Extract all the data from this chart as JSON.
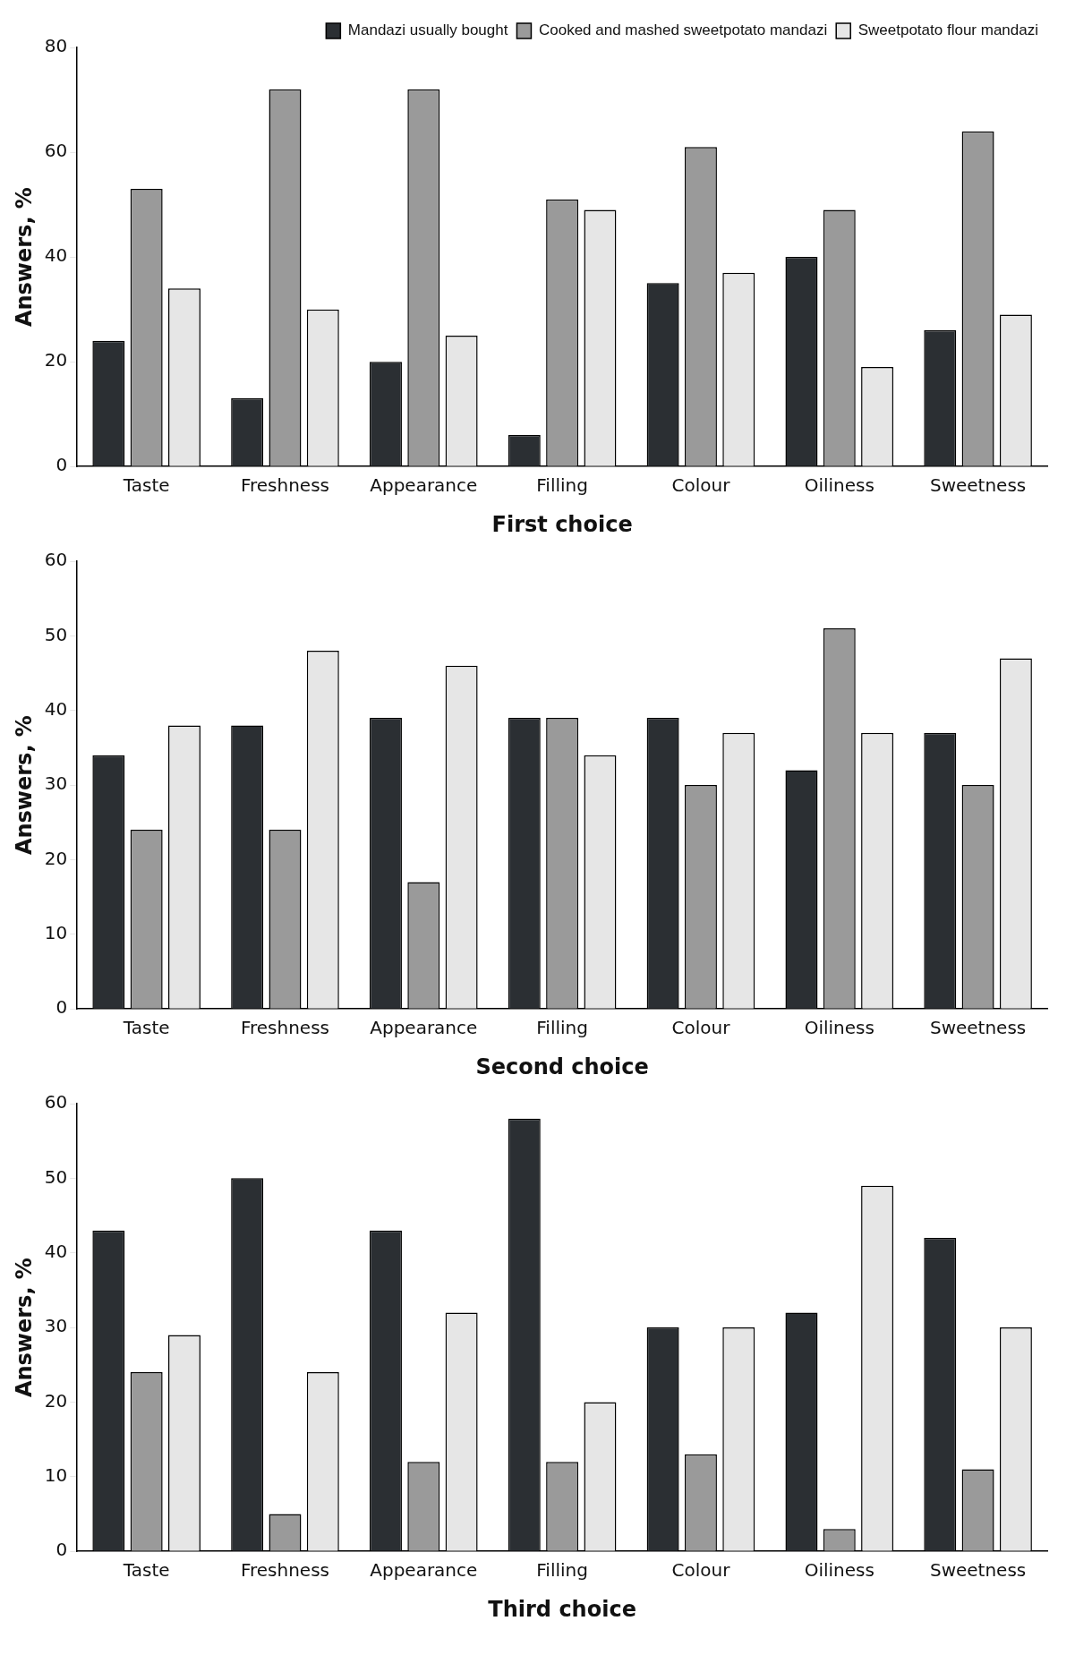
{
  "chart_data": [
    {
      "type": "bar",
      "xlabel": "First choice",
      "ylabel": "Answers, %",
      "categories": [
        "Taste",
        "Freshness",
        "Appearance",
        "Filling",
        "Colour",
        "Oiliness",
        "Sweetness"
      ],
      "ylim": [
        0,
        80
      ],
      "yticks": [
        0,
        20,
        40,
        60,
        80
      ],
      "grid": false,
      "legend": "top right",
      "series": [
        {
          "name": "Mandazi usually bought",
          "color": "#2b2f33",
          "values": [
            24,
            13,
            20,
            6,
            35,
            40,
            26
          ]
        },
        {
          "name": "Cooked and mashed sweetpotato mandazi",
          "color": "#9a9a9a",
          "values": [
            53,
            72,
            72,
            51,
            61,
            49,
            64
          ]
        },
        {
          "name": "Sweetpotato flour mandazi",
          "color": "#e6e6e6",
          "values": [
            34,
            30,
            25,
            49,
            37,
            19,
            29
          ]
        }
      ]
    },
    {
      "type": "bar",
      "xlabel": "Second choice",
      "ylabel": "Answers, %",
      "categories": [
        "Taste",
        "Freshness",
        "Appearance",
        "Filling",
        "Colour",
        "Oiliness",
        "Sweetness"
      ],
      "ylim": [
        0,
        60
      ],
      "yticks": [
        0,
        10,
        20,
        30,
        40,
        50,
        60
      ],
      "grid": false,
      "series": [
        {
          "color": "#2b2f33",
          "values": [
            34,
            38,
            39,
            39,
            39,
            32,
            37
          ]
        },
        {
          "color": "#9a9a9a",
          "values": [
            24,
            24,
            17,
            39,
            30,
            51,
            30
          ]
        },
        {
          "color": "#e6e6e6",
          "values": [
            38,
            48,
            46,
            34,
            37,
            37,
            47
          ]
        }
      ]
    },
    {
      "type": "bar",
      "xlabel": "Third choice",
      "ylabel": "Answers, %",
      "categories": [
        "Taste",
        "Freshness",
        "Appearance",
        "Filling",
        "Colour",
        "Oiliness",
        "Sweetness"
      ],
      "ylim": [
        0,
        60
      ],
      "yticks": [
        0,
        10,
        20,
        30,
        40,
        50,
        60
      ],
      "grid": false,
      "series": [
        {
          "color": "#2b2f33",
          "values": [
            43,
            50,
            43,
            58,
            30,
            32,
            42
          ]
        },
        {
          "color": "#9a9a9a",
          "values": [
            24,
            5,
            12,
            12,
            13,
            3,
            11
          ]
        },
        {
          "color": "#e6e6e6",
          "values": [
            29,
            24,
            32,
            20,
            30,
            49,
            30
          ]
        }
      ]
    }
  ]
}
